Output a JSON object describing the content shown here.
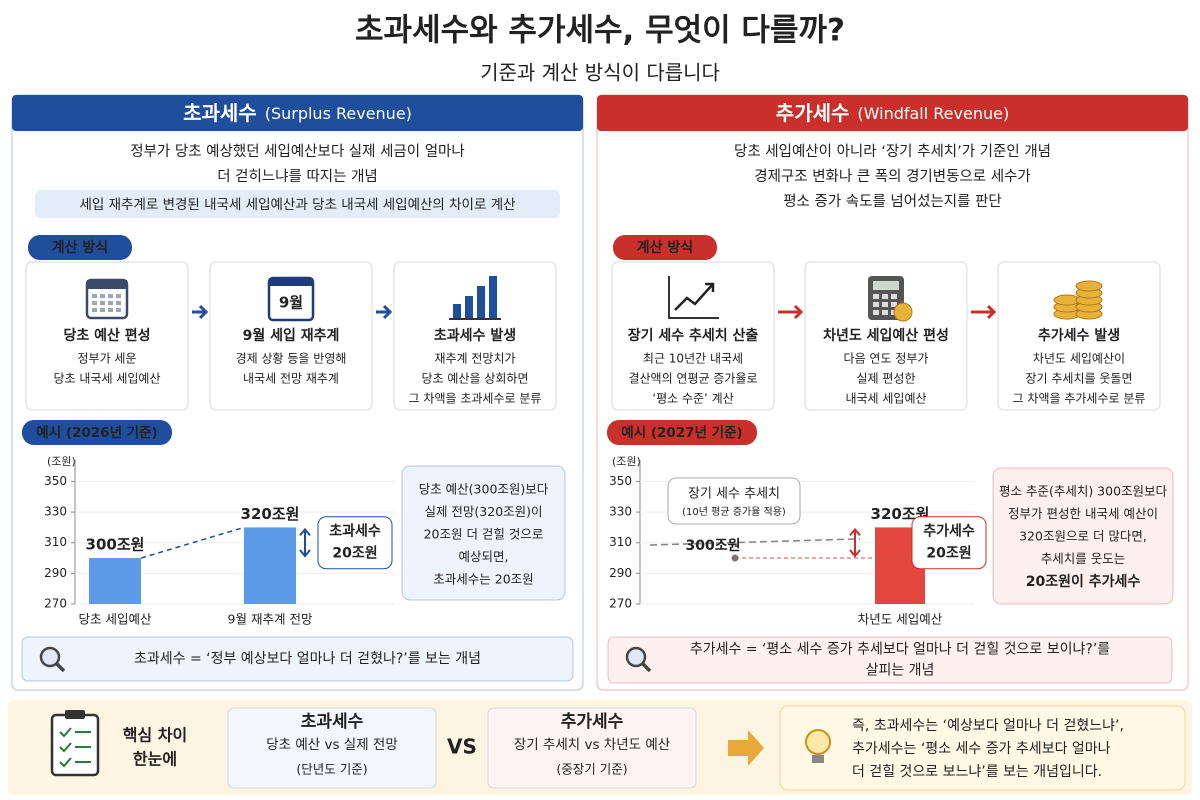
{
  "header": {
    "title": "초과세수와 추가세수, 무엇이 다를까?",
    "subtitle": "기준과 계산 방식이 다릅니다"
  },
  "panels": [
    {
      "title": "초과세수",
      "title_en": "(Surplus Revenue)",
      "description": [
        "정부가 당초 예상했던 세입예산보다 실제 세금이 얼마나",
        "더 걷히느냐를 따지는 개념"
      ],
      "highlight": "세입 재추계로 변경된 내국세 세입예산과 당초 내국세 세입예산의 차이로 계산",
      "method_label": "계산 방식",
      "steps": [
        {
          "title": "당초 예산 편성",
          "text": [
            "정부가 세운",
            "당초 내국세 세입예산"
          ]
        },
        {
          "icon_label": "9월",
          "title": "9월 세입 재추계",
          "text": [
            "경제 상황 등을 반영해",
            "내국세 전망 재추계"
          ]
        },
        {
          "title": "초과세수 발생",
          "text": [
            "재추계 전망치가",
            "당초 예산을 상회하면",
            "그 차액을 초과세수로 분류"
          ]
        }
      ],
      "example_label": "예시 (2026년 기준)",
      "chart": {
        "type": "bar",
        "unit_label": "(조원)",
        "categories": [
          "당초 세입예산",
          "9월 재추계 전망"
        ],
        "values": [
          300,
          320
        ],
        "value_labels": [
          "300조원",
          "320조원"
        ],
        "ylim": [
          270,
          364
        ],
        "yticks": [
          270,
          290,
          310,
          330,
          350
        ],
        "callout": [
          "초과세수",
          "20조원"
        ]
      },
      "note": [
        "당초 예산(300조원)보다",
        "실제 전망(320조원)이",
        "20조원 더 걷힐 것으로",
        "예상되면,",
        "초과세수는 20조원"
      ],
      "summary": [
        "초과세수 = ‘정부 예상보다 얼마나 더 걷혔나?’를 보는 개념"
      ]
    },
    {
      "title": "추가세수",
      "title_en": "(Windfall Revenue)",
      "description": [
        "당초 세입예산이 아니라 ‘장기 추세치’가 기준인 개념",
        "경제구조 변화나 큰 폭의 경기변동으로 세수가",
        "평소 증가 속도를 넘어섰는지를 판단"
      ],
      "method_label": "계산 방식",
      "steps": [
        {
          "title": "장기 세수 추세치 산출",
          "text": [
            "최근 10년간 내국세",
            "결산액의 연평균 증가율로",
            "‘평소 수준’ 계산"
          ]
        },
        {
          "title": "차년도 세입예산 편성",
          "text": [
            "다음 연도 정부가",
            "실제 편성한",
            "내국세 세입예산"
          ]
        },
        {
          "title": "추가세수 발생",
          "text": [
            "차년도 세입예산이",
            "장기 추세치를 웃돌면",
            "그 차액을 추가세수로 분류"
          ]
        }
      ],
      "example_label": "예시 (2027년 기준)",
      "chart": {
        "type": "bar",
        "unit_label": "(조원)",
        "categories": [
          "차년도 세입예산"
        ],
        "values": [
          320
        ],
        "value_labels": [
          "320조원"
        ],
        "trend": {
          "name": "장기 세수 추세치",
          "note": "(10년 평균 증가율 적용)",
          "value": 300,
          "value_label": "300조원"
        },
        "ylim": [
          270,
          364
        ],
        "yticks": [
          270,
          290,
          310,
          330,
          350
        ],
        "callout": [
          "추가세수",
          "20조원"
        ]
      },
      "note": [
        "평소 추준(추세치) 300조원보다",
        "정부가 편성한 내국세 예산이",
        "320조원으로 더 많다면,",
        "추세치를 웃도는",
        "20조원이 추가세수"
      ],
      "summary": [
        "추가세수 = ‘평소 세수 증가 추세보다 얼마나 더 걷힐 것으로 보이냐?’를",
        "살피는 개념"
      ]
    }
  ],
  "comparison": {
    "label": [
      "핵심 차이",
      "한눈에"
    ],
    "left": {
      "title": "초과세수",
      "text": "당초 예산 vs 실제 전망",
      "sub": "(단년도 기준)"
    },
    "vs": "VS",
    "right": {
      "title": "추가세수",
      "text": "장기 추세치 vs 차년도 예산",
      "sub": "(중장기 기준)"
    },
    "conclusion": [
      "즉, 초과세수는 ‘예상보다 얼마나 더 걷혔느냐’,",
      "추가세수는 ‘평소 세수 증가 추세보다 얼마나",
      "더 걷힐 것으로 보느냐’를 보는 개념입니다."
    ]
  }
}
